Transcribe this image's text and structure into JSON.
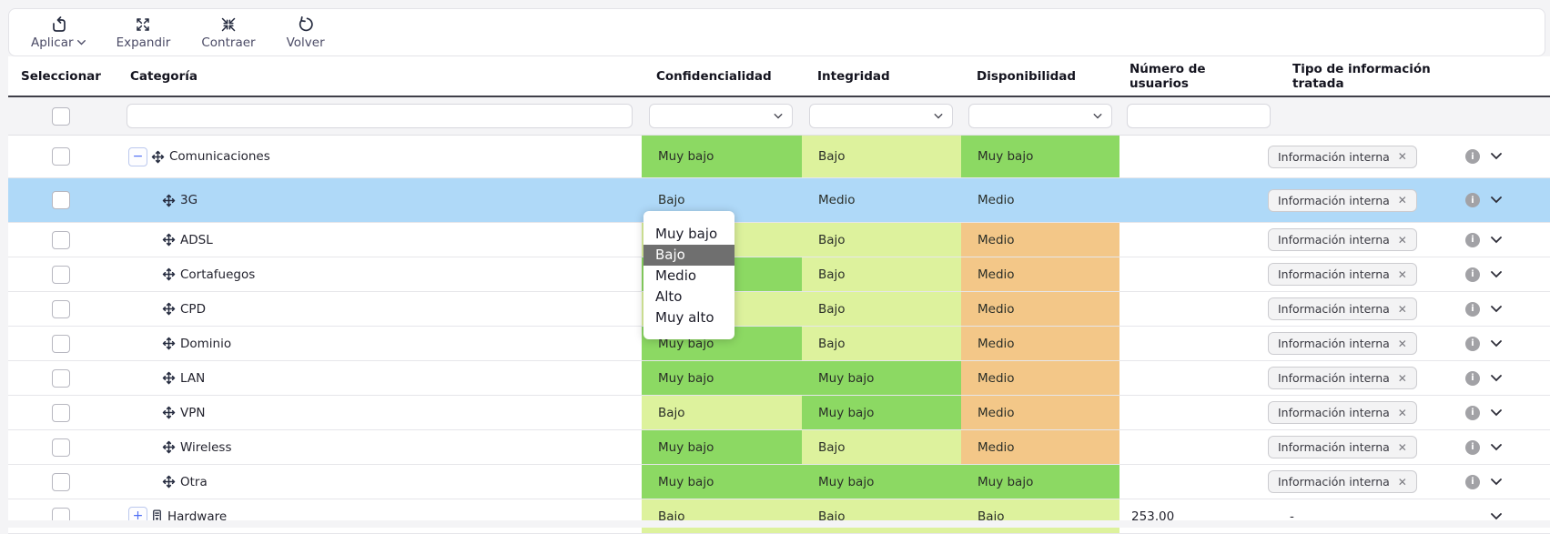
{
  "toolbar": {
    "buttons": [
      {
        "label": "Aplicar",
        "icon": "apply-icon",
        "has_dropdown": true
      },
      {
        "label": "Expandir",
        "icon": "expand-icon",
        "has_dropdown": false
      },
      {
        "label": "Contraer",
        "icon": "collapse-icon",
        "has_dropdown": false
      },
      {
        "label": "Volver",
        "icon": "undo-icon",
        "has_dropdown": false
      }
    ]
  },
  "columns": [
    "Seleccionar",
    "Categoría",
    "Confidencialidad",
    "Integridad",
    "Disponibilidad",
    "Número de usuarios",
    "Tipo de información tratada"
  ],
  "filters": {
    "category_value": "",
    "confidencialidad_value": "",
    "integridad_value": "",
    "disponibilidad_value": "",
    "users_value": ""
  },
  "dropdown": {
    "options": [
      "Muy bajo",
      "Bajo",
      "Medio",
      "Alto",
      "Muy alto"
    ],
    "selected": "Bajo"
  },
  "chip_close": "✕",
  "rows": [
    {
      "label": "Comunicaciones",
      "kind": "parent",
      "toggle": "−",
      "icon": "move",
      "selected": false,
      "conf": {
        "text": "Muy bajo",
        "color": "green"
      },
      "integ": {
        "text": "Bajo",
        "color": "light"
      },
      "disp": {
        "text": "Muy bajo",
        "color": "green"
      },
      "users": "",
      "tipo": "Información interna"
    },
    {
      "label": "3G",
      "kind": "child",
      "toggle": null,
      "icon": "move",
      "selected": true,
      "conf": {
        "text": "Bajo",
        "color": "none"
      },
      "integ": {
        "text": "Medio",
        "color": "none"
      },
      "disp": {
        "text": "Medio",
        "color": "none"
      },
      "users": "",
      "tipo": "Información interna"
    },
    {
      "label": "ADSL",
      "kind": "child",
      "toggle": null,
      "icon": "move",
      "selected": false,
      "conf": {
        "text": "",
        "color": "light"
      },
      "integ": {
        "text": "Bajo",
        "color": "light"
      },
      "disp": {
        "text": "Medio",
        "color": "orange"
      },
      "users": "",
      "tipo": "Información interna"
    },
    {
      "label": "Cortafuegos",
      "kind": "child",
      "toggle": null,
      "icon": "move",
      "selected": false,
      "conf": {
        "text": "",
        "color": "green"
      },
      "integ": {
        "text": "Bajo",
        "color": "light"
      },
      "disp": {
        "text": "Medio",
        "color": "orange"
      },
      "users": "",
      "tipo": "Información interna"
    },
    {
      "label": "CPD",
      "kind": "child",
      "toggle": null,
      "icon": "move",
      "selected": false,
      "conf": {
        "text": "",
        "color": "light"
      },
      "integ": {
        "text": "Bajo",
        "color": "light"
      },
      "disp": {
        "text": "Medio",
        "color": "orange"
      },
      "users": "",
      "tipo": "Información interna"
    },
    {
      "label": "Dominio",
      "kind": "child",
      "toggle": null,
      "icon": "move",
      "selected": false,
      "conf": {
        "text": "Muy bajo",
        "color": "green"
      },
      "integ": {
        "text": "Bajo",
        "color": "light"
      },
      "disp": {
        "text": "Medio",
        "color": "orange"
      },
      "users": "",
      "tipo": "Información interna"
    },
    {
      "label": "LAN",
      "kind": "child",
      "toggle": null,
      "icon": "move",
      "selected": false,
      "conf": {
        "text": "Muy bajo",
        "color": "green"
      },
      "integ": {
        "text": "Muy bajo",
        "color": "green"
      },
      "disp": {
        "text": "Medio",
        "color": "orange"
      },
      "users": "",
      "tipo": "Información interna"
    },
    {
      "label": "VPN",
      "kind": "child",
      "toggle": null,
      "icon": "move",
      "selected": false,
      "conf": {
        "text": "Bajo",
        "color": "light"
      },
      "integ": {
        "text": "Muy bajo",
        "color": "green"
      },
      "disp": {
        "text": "Medio",
        "color": "orange"
      },
      "users": "",
      "tipo": "Información interna"
    },
    {
      "label": "Wireless",
      "kind": "child",
      "toggle": null,
      "icon": "move",
      "selected": false,
      "conf": {
        "text": "Muy bajo",
        "color": "green"
      },
      "integ": {
        "text": "Bajo",
        "color": "light"
      },
      "disp": {
        "text": "Medio",
        "color": "orange"
      },
      "users": "",
      "tipo": "Información interna"
    },
    {
      "label": "Otra",
      "kind": "child",
      "toggle": null,
      "icon": "move",
      "selected": false,
      "conf": {
        "text": "Muy bajo",
        "color": "green"
      },
      "integ": {
        "text": "Muy bajo",
        "color": "green"
      },
      "disp": {
        "text": "Muy bajo",
        "color": "green"
      },
      "users": "",
      "tipo": "Información interna"
    },
    {
      "label": "Hardware",
      "kind": "parent",
      "toggle": "+",
      "icon": "hardware",
      "selected": false,
      "conf": {
        "text": "Bajo",
        "color": "light"
      },
      "integ": {
        "text": "Bajo",
        "color": "light"
      },
      "disp": {
        "text": "Bajo",
        "color": "light"
      },
      "users": "253,00",
      "tipo": "-"
    }
  ],
  "colors": {
    "level_green": "#8cd963",
    "level_light": "#ddf29d",
    "level_orange": "#f3c788",
    "selected_row": "#afd9f8",
    "dropdown_highlight": "#6f6f6f"
  }
}
